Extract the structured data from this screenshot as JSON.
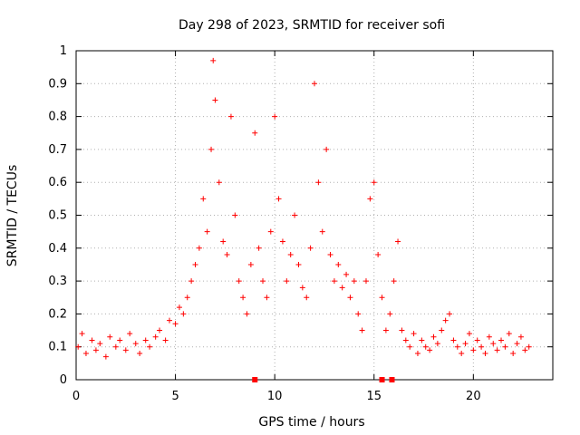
{
  "chart_data": {
    "type": "scatter",
    "title": "Day 298 of 2023, SRMTID for receiver sofi",
    "xlabel": "GPS time / hours",
    "ylabel": "SRMTID / TECUs",
    "xlim": [
      0,
      24
    ],
    "ylim": [
      0,
      1
    ],
    "x_ticks": [
      "0",
      "5",
      "10",
      "15",
      "20"
    ],
    "y_ticks": [
      "0",
      "0.1",
      "0.2",
      "0.3",
      "0.4",
      "0.5",
      "0.6",
      "0.7",
      "0.8",
      "0.9",
      "1"
    ],
    "grid": true,
    "marker": "+",
    "color": "#ff0000",
    "series": [
      {
        "name": "SRMTID",
        "x": [
          0.1,
          0.3,
          0.5,
          0.8,
          1.0,
          1.2,
          1.5,
          1.7,
          2.0,
          2.2,
          2.5,
          2.7,
          3.0,
          3.2,
          3.5,
          3.7,
          4.0,
          4.2,
          4.5,
          4.7,
          5.0,
          5.2,
          5.4,
          5.6,
          5.8,
          6.0,
          6.2,
          6.4,
          6.6,
          6.8,
          6.9,
          7.0,
          7.2,
          7.4,
          7.6,
          7.8,
          8.0,
          8.2,
          8.4,
          8.6,
          8.8,
          9.0,
          9.2,
          9.4,
          9.6,
          9.8,
          10.0,
          10.2,
          10.4,
          10.6,
          10.8,
          11.0,
          11.2,
          11.4,
          11.6,
          11.8,
          12.0,
          12.2,
          12.4,
          12.6,
          12.8,
          13.0,
          13.2,
          13.4,
          13.6,
          13.8,
          14.0,
          14.2,
          14.4,
          14.6,
          14.8,
          15.0,
          15.2,
          15.4,
          15.6,
          15.8,
          16.0,
          16.2,
          16.4,
          16.6,
          16.8,
          17.0,
          17.2,
          17.4,
          17.6,
          17.8,
          18.0,
          18.2,
          18.4,
          18.6,
          18.8,
          19.0,
          19.2,
          19.4,
          19.6,
          19.8,
          20.0,
          20.2,
          20.4,
          20.6,
          20.8,
          21.0,
          21.2,
          21.4,
          21.6,
          21.8,
          22.0,
          22.2,
          22.4,
          22.6,
          22.8
        ],
        "y": [
          0.1,
          0.14,
          0.08,
          0.12,
          0.09,
          0.11,
          0.07,
          0.13,
          0.1,
          0.12,
          0.09,
          0.14,
          0.11,
          0.08,
          0.12,
          0.1,
          0.13,
          0.15,
          0.12,
          0.18,
          0.17,
          0.22,
          0.2,
          0.25,
          0.3,
          0.35,
          0.4,
          0.55,
          0.45,
          0.7,
          0.97,
          0.85,
          0.6,
          0.42,
          0.38,
          0.8,
          0.5,
          0.3,
          0.25,
          0.2,
          0.35,
          0.75,
          0.4,
          0.3,
          0.25,
          0.45,
          0.8,
          0.55,
          0.42,
          0.3,
          0.38,
          0.5,
          0.35,
          0.28,
          0.25,
          0.4,
          0.9,
          0.6,
          0.45,
          0.7,
          0.38,
          0.3,
          0.35,
          0.28,
          0.32,
          0.25,
          0.3,
          0.2,
          0.15,
          0.3,
          0.55,
          0.6,
          0.38,
          0.25,
          0.15,
          0.2,
          0.3,
          0.42,
          0.15,
          0.12,
          0.1,
          0.14,
          0.08,
          0.12,
          0.1,
          0.09,
          0.13,
          0.11,
          0.15,
          0.18,
          0.2,
          0.12,
          0.1,
          0.08,
          0.11,
          0.14,
          0.09,
          0.12,
          0.1,
          0.08,
          0.13,
          0.11,
          0.09,
          0.12,
          0.1,
          0.14,
          0.08,
          0.11,
          0.13,
          0.09,
          0.1
        ]
      }
    ],
    "gap_markers_x": [
      9.0,
      15.4,
      15.9
    ]
  }
}
